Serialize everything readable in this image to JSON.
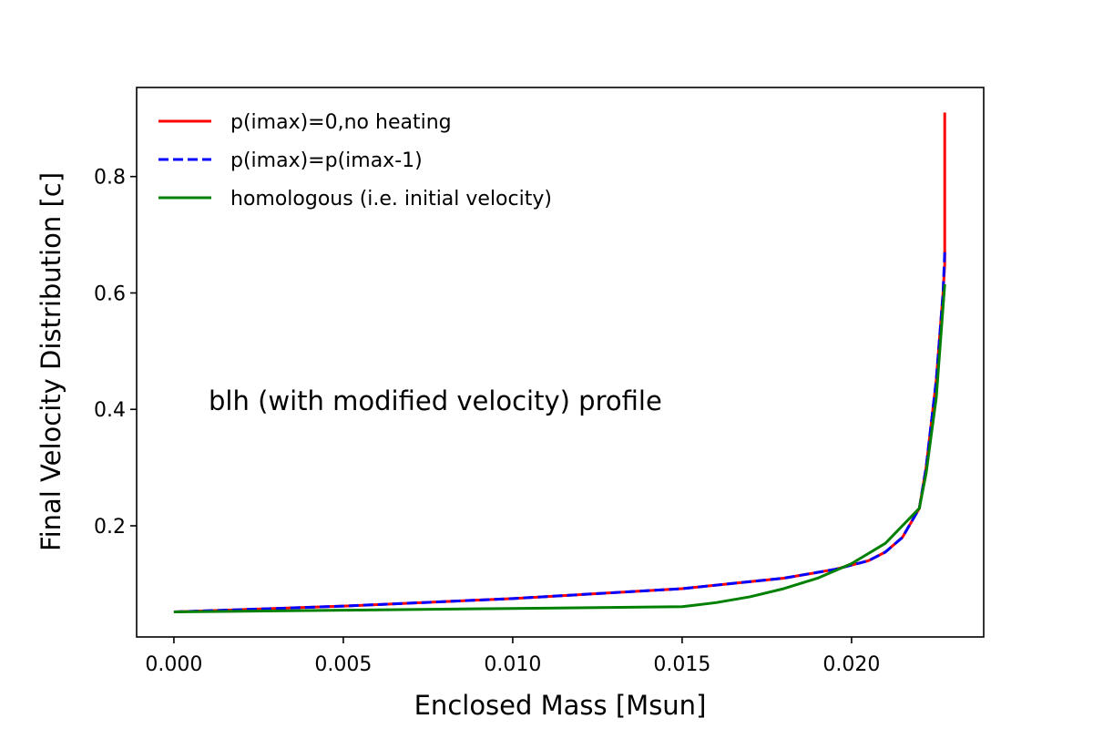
{
  "chart_data": {
    "type": "line",
    "title": "",
    "xlabel": "Enclosed Mass [Msun]",
    "ylabel": "Final Velocity Distribution [c]",
    "xlim": [
      -0.0011,
      0.0239
    ],
    "ylim": [
      0.009,
      0.953
    ],
    "xticks": [
      0.0,
      0.005,
      0.01,
      0.015,
      0.02
    ],
    "xtick_labels": [
      "0.000",
      "0.005",
      "0.010",
      "0.015",
      "0.020"
    ],
    "yticks": [
      0.2,
      0.4,
      0.6,
      0.8
    ],
    "ytick_labels": [
      "0.2",
      "0.4",
      "0.6",
      "0.8"
    ],
    "grid": false,
    "legend_position": "upper-left",
    "annotation": "blh (with modified velocity) profile",
    "series": [
      {
        "name": "p(imax)=0,no heating",
        "color": "#ff0000",
        "dash": "solid",
        "points": [
          [
            0.0,
            0.052
          ],
          [
            0.005,
            0.062
          ],
          [
            0.01,
            0.075
          ],
          [
            0.015,
            0.092
          ],
          [
            0.018,
            0.11
          ],
          [
            0.0195,
            0.125
          ],
          [
            0.0205,
            0.14
          ],
          [
            0.021,
            0.155
          ],
          [
            0.0215,
            0.18
          ],
          [
            0.022,
            0.23
          ],
          [
            0.0222,
            0.3
          ],
          [
            0.0225,
            0.45
          ],
          [
            0.0227,
            0.6
          ],
          [
            0.02275,
            0.65
          ],
          [
            0.02275,
            0.91
          ]
        ]
      },
      {
        "name": "p(imax)=p(imax-1)",
        "color": "#0000ff",
        "dash": "dashed",
        "points": [
          [
            0.0,
            0.052
          ],
          [
            0.005,
            0.062
          ],
          [
            0.01,
            0.075
          ],
          [
            0.015,
            0.092
          ],
          [
            0.018,
            0.11
          ],
          [
            0.0195,
            0.125
          ],
          [
            0.0205,
            0.14
          ],
          [
            0.021,
            0.155
          ],
          [
            0.0215,
            0.18
          ],
          [
            0.022,
            0.23
          ],
          [
            0.0222,
            0.3
          ],
          [
            0.0225,
            0.45
          ],
          [
            0.0227,
            0.6
          ],
          [
            0.02275,
            0.67
          ]
        ]
      },
      {
        "name": "homologous (i.e. initial velocity)",
        "color": "#008000",
        "dash": "solid",
        "points": [
          [
            0.0,
            0.052
          ],
          [
            0.005,
            0.055
          ],
          [
            0.01,
            0.058
          ],
          [
            0.015,
            0.061
          ],
          [
            0.016,
            0.068
          ],
          [
            0.017,
            0.078
          ],
          [
            0.018,
            0.092
          ],
          [
            0.019,
            0.11
          ],
          [
            0.02,
            0.135
          ],
          [
            0.021,
            0.17
          ],
          [
            0.022,
            0.23
          ],
          [
            0.0222,
            0.29
          ],
          [
            0.0225,
            0.42
          ],
          [
            0.02275,
            0.615
          ]
        ]
      }
    ]
  }
}
